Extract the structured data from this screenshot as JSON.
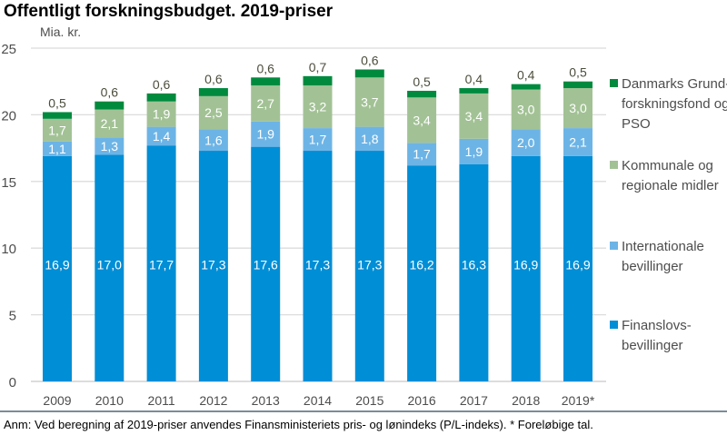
{
  "chart_data": {
    "type": "bar",
    "stacked": true,
    "title": "Offentligt forskningsbudget. 2019-priser",
    "ylabel": "Mia. kr.",
    "xlabel": "",
    "ylim": [
      0,
      25
    ],
    "yticks": [
      0,
      5,
      10,
      15,
      20,
      25
    ],
    "grid": true,
    "legend_position": "right",
    "categories": [
      "2009",
      "2010",
      "2011",
      "2012",
      "2013",
      "2014",
      "2015",
      "2016",
      "2017",
      "2018",
      "2019*"
    ],
    "series": [
      {
        "name": "Finanslovs-bevillinger",
        "legend_lines": [
          "Finanslovs-",
          "bevillinger"
        ],
        "color": "#008ed6",
        "label_color": "#ffffff",
        "values": [
          16.9,
          17.0,
          17.7,
          17.3,
          17.6,
          17.3,
          17.3,
          16.2,
          16.3,
          16.9,
          16.9
        ]
      },
      {
        "name": "Internationale bevillinger",
        "legend_lines": [
          "Internationale",
          "bevillinger"
        ],
        "color": "#6db4e6",
        "label_color": "#ffffff",
        "values": [
          1.1,
          1.3,
          1.4,
          1.6,
          1.9,
          1.7,
          1.8,
          1.7,
          1.9,
          2.0,
          2.1
        ]
      },
      {
        "name": "Kommunale og regionale midler",
        "legend_lines": [
          "Kommunale og",
          "regionale midler"
        ],
        "color": "#a2c295",
        "label_color": "#ffffff",
        "values": [
          1.7,
          2.1,
          1.9,
          2.5,
          2.7,
          3.2,
          3.7,
          3.4,
          3.4,
          3.0,
          3.0
        ]
      },
      {
        "name": "Danmarks Grundforskningsfond og PSO",
        "legend_lines": [
          "Danmarks Grund-",
          "forskningsfond og",
          "PSO"
        ],
        "color": "#008a3e",
        "label_color": "#4d4d3d",
        "values": [
          0.5,
          0.6,
          0.6,
          0.6,
          0.6,
          0.7,
          0.6,
          0.5,
          0.4,
          0.4,
          0.5
        ]
      }
    ]
  },
  "footnote": "Anm: Ved beregning af 2019-priser anvendes Finansministeriets pris- og lønindeks (P/L-indeks). * Foreløbige tal."
}
